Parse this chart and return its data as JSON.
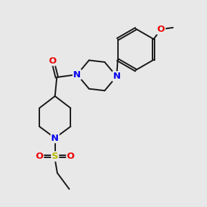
{
  "background_color": "#e8e8e8",
  "bond_color": "#1a1a1a",
  "bond_width": 1.5,
  "atom_colors": {
    "N": "#0000ee",
    "O": "#ee0000",
    "S": "#b8b800",
    "C": "#1a1a1a"
  },
  "font_size_atom": 9.5,
  "xlim": [
    1.0,
    8.5
  ],
  "ylim": [
    0.5,
    9.5
  ]
}
